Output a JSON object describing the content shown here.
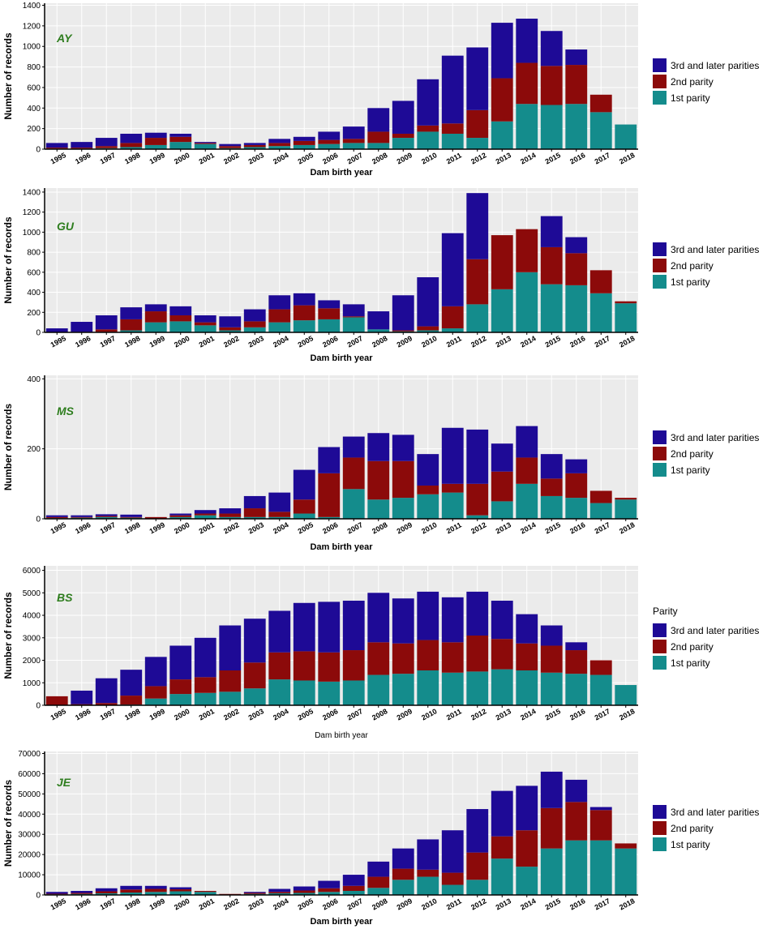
{
  "colors": {
    "third": "#1e0a96",
    "second": "#8c0a0a",
    "first": "#148c8c",
    "panel_bg": "#ebebeb",
    "breed_label": "#2e7d1e"
  },
  "series_names": [
    "1st parity",
    "2nd parity",
    "3rd and later parities"
  ],
  "legend": {
    "labels": [
      "3rd and later parities",
      "2nd parity",
      "1st parity"
    ]
  },
  "chart_data": [
    {
      "type": "bar",
      "stacked": true,
      "title": "AY",
      "xlabel": "Dam birth year",
      "ylabel": "Number of records",
      "ylim": [
        0,
        1420
      ],
      "yticks": [
        0,
        200,
        400,
        600,
        800,
        1000,
        1200,
        1400
      ],
      "categories": [
        "1995",
        "1996",
        "1997",
        "1998",
        "1999",
        "2000",
        "2001",
        "2002",
        "2003",
        "2004",
        "2005",
        "2006",
        "2007",
        "2008",
        "2009",
        "2010",
        "2011",
        "2012",
        "2013",
        "2014",
        "2015",
        "2016",
        "2017",
        "2018"
      ],
      "series": [
        {
          "name": "1st parity",
          "values": [
            5,
            5,
            10,
            20,
            40,
            70,
            50,
            10,
            20,
            30,
            40,
            50,
            60,
            60,
            110,
            170,
            150,
            110,
            270,
            440,
            430,
            440,
            360,
            240
          ]
        },
        {
          "name": "2nd parity",
          "values": [
            10,
            10,
            20,
            40,
            70,
            50,
            10,
            20,
            20,
            30,
            40,
            40,
            40,
            110,
            40,
            60,
            100,
            270,
            420,
            400,
            380,
            380,
            170,
            0
          ]
        },
        {
          "name": "3rd and later parities",
          "values": [
            45,
            55,
            80,
            90,
            50,
            30,
            10,
            20,
            20,
            40,
            40,
            80,
            120,
            230,
            320,
            450,
            660,
            610,
            540,
            430,
            340,
            150,
            0,
            0
          ]
        }
      ]
    },
    {
      "type": "bar",
      "stacked": true,
      "title": "GU",
      "xlabel": "Dam birth year",
      "ylabel": "Number of records",
      "ylim": [
        0,
        1440
      ],
      "yticks": [
        0,
        200,
        400,
        600,
        800,
        1000,
        1200,
        1400
      ],
      "categories": [
        "1995",
        "1996",
        "1997",
        "1998",
        "1999",
        "2000",
        "2001",
        "2002",
        "2003",
        "2004",
        "2005",
        "2006",
        "2007",
        "2008",
        "2009",
        "2010",
        "2011",
        "2012",
        "2013",
        "2014",
        "2015",
        "2016",
        "2017",
        "2018"
      ],
      "series": [
        {
          "name": "1st parity",
          "values": [
            0,
            0,
            5,
            20,
            100,
            110,
            70,
            20,
            50,
            100,
            120,
            130,
            150,
            30,
            10,
            20,
            40,
            280,
            430,
            600,
            480,
            470,
            390,
            290
          ]
        },
        {
          "name": "2nd parity",
          "values": [
            0,
            5,
            25,
            110,
            110,
            60,
            30,
            30,
            60,
            130,
            150,
            110,
            10,
            0,
            10,
            40,
            220,
            450,
            540,
            430,
            370,
            320,
            230,
            20
          ]
        },
        {
          "name": "3rd and later parities",
          "values": [
            40,
            100,
            140,
            120,
            70,
            90,
            70,
            110,
            120,
            140,
            120,
            80,
            120,
            180,
            350,
            490,
            730,
            660,
            0,
            0,
            310,
            160,
            0,
            0
          ]
        }
      ]
    },
    {
      "type": "bar",
      "stacked": true,
      "title": "MS",
      "xlabel": "Dam birth year",
      "ylabel": "Number of records",
      "ylim": [
        0,
        410
      ],
      "yticks": [
        0,
        200,
        400
      ],
      "categories": [
        "1995",
        "1996",
        "1997",
        "1998",
        "1999",
        "2000",
        "2001",
        "2002",
        "2003",
        "2004",
        "2005",
        "2006",
        "2007",
        "2008",
        "2009",
        "2010",
        "2011",
        "2012",
        "2013",
        "2014",
        "2015",
        "2016",
        "2017",
        "2018"
      ],
      "series": [
        {
          "name": "1st parity",
          "values": [
            2,
            3,
            5,
            3,
            0,
            5,
            10,
            5,
            5,
            5,
            15,
            5,
            85,
            55,
            60,
            70,
            75,
            10,
            50,
            100,
            65,
            60,
            45,
            55
          ]
        },
        {
          "name": "2nd parity",
          "values": [
            3,
            2,
            3,
            2,
            5,
            5,
            5,
            10,
            25,
            15,
            40,
            125,
            90,
            110,
            105,
            25,
            25,
            90,
            85,
            75,
            50,
            70,
            35,
            5
          ]
        },
        {
          "name": "3rd and later parities",
          "values": [
            5,
            5,
            5,
            7,
            0,
            5,
            10,
            15,
            35,
            55,
            85,
            75,
            60,
            80,
            75,
            90,
            160,
            155,
            80,
            90,
            70,
            40,
            0,
            0
          ]
        }
      ]
    },
    {
      "type": "bar",
      "stacked": true,
      "title": "BS",
      "xlabel": "Dam birth year",
      "ylabel": "Number of records",
      "ylim": [
        0,
        6200
      ],
      "yticks": [
        0,
        1000,
        2000,
        3000,
        4000,
        5000,
        6000
      ],
      "categories": [
        "1995",
        "1996",
        "1997",
        "1998",
        "1999",
        "2000",
        "2001",
        "2002",
        "2003",
        "2004",
        "2005",
        "2006",
        "2007",
        "2008",
        "2009",
        "2010",
        "2011",
        "2012",
        "2013",
        "2014",
        "2015",
        "2016",
        "2017",
        "2018"
      ],
      "series": [
        {
          "name": "1st parity",
          "values": [
            0,
            0,
            0,
            30,
            300,
            500,
            550,
            600,
            750,
            1150,
            1100,
            1050,
            1100,
            1350,
            1400,
            1550,
            1450,
            1500,
            1600,
            1550,
            1450,
            1400,
            1350,
            900
          ]
        },
        {
          "name": "2nd parity",
          "values": [
            400,
            50,
            100,
            400,
            550,
            650,
            700,
            950,
            1150,
            1200,
            1300,
            1300,
            1350,
            1450,
            1350,
            1350,
            1350,
            1600,
            1350,
            1200,
            1200,
            1050,
            650,
            0
          ]
        },
        {
          "name": "3rd and later parities",
          "values": [
            0,
            600,
            1100,
            1150,
            1300,
            1500,
            1750,
            2000,
            1950,
            1850,
            2150,
            2250,
            2200,
            2200,
            2000,
            2150,
            2000,
            1950,
            1700,
            1300,
            900,
            350,
            0,
            0
          ]
        }
      ],
      "legend_title": "Parity"
    },
    {
      "type": "bar",
      "stacked": true,
      "title": "JE",
      "xlabel": "Dam birth year",
      "ylabel": "Number of records",
      "ylim": [
        0,
        71000
      ],
      "yticks": [
        0,
        10000,
        20000,
        30000,
        40000,
        50000,
        60000,
        70000
      ],
      "categories": [
        "1995",
        "1996",
        "1997",
        "1998",
        "1999",
        "2000",
        "2001",
        "2002",
        "2003",
        "2004",
        "2005",
        "2006",
        "2007",
        "2008",
        "2009",
        "2010",
        "2011",
        "2012",
        "2013",
        "2014",
        "2015",
        "2016",
        "2017",
        "2018"
      ],
      "series": [
        {
          "name": "1st parity",
          "values": [
            300,
            500,
            800,
            1200,
            1500,
            1800,
            1500,
            200,
            500,
            800,
            1000,
            1500,
            2000,
            3500,
            7500,
            9000,
            5000,
            7500,
            18000,
            14000,
            23000,
            27000,
            27000,
            23000
          ]
        },
        {
          "name": "2nd parity",
          "values": [
            300,
            500,
            1000,
            1500,
            1500,
            1000,
            500,
            300,
            500,
            700,
            1200,
            1800,
            2500,
            5500,
            5500,
            3500,
            6000,
            13500,
            11000,
            18000,
            20000,
            19000,
            15000,
            2500
          ]
        },
        {
          "name": "3rd and later parities",
          "values": [
            900,
            1000,
            1500,
            1800,
            1500,
            1000,
            0,
            0,
            500,
            1500,
            2000,
            3700,
            5500,
            7500,
            10000,
            15000,
            21000,
            21500,
            22500,
            22000,
            18000,
            11000,
            1500,
            0
          ]
        }
      ]
    }
  ]
}
